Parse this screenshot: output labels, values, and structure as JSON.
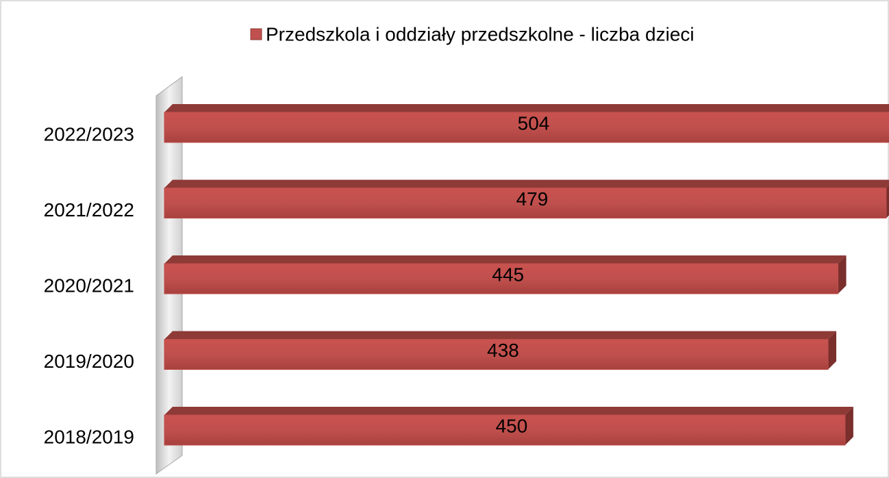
{
  "chart_data": {
    "type": "bar",
    "orientation": "horizontal",
    "legend_title": "Przedszkola i oddziały przedszkolne - liczba dzieci",
    "categories": [
      "2018/2019",
      "2019/2020",
      "2020/2021",
      "2021/2022",
      "2022/2023"
    ],
    "values": [
      450,
      438,
      445,
      479,
      504
    ],
    "color": "#c0504d",
    "xlim": [
      -30,
      480
    ],
    "legend": "top"
  }
}
